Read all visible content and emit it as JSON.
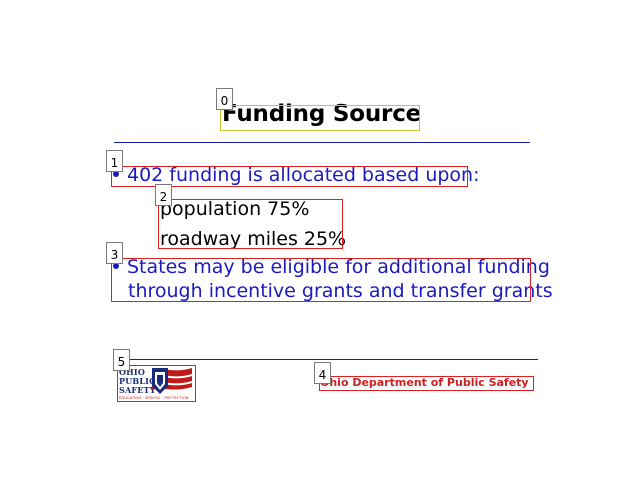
{
  "slide": {
    "title": "Funding Source",
    "bullets": [
      {
        "text": "402 funding is allocated based upon:",
        "sub_items": [
          "population  75%",
          "roadway miles 25%"
        ]
      },
      {
        "lines": [
          "States may be eligible for additional funding",
          "through incentive grants and transfer grants"
        ]
      }
    ]
  },
  "footer": {
    "department": "Ohio Department of Public Safety",
    "logo": {
      "lines": [
        "OHIO",
        "PUBLIC",
        "SAFETY"
      ],
      "motto": "EDUCATION · SERVICE · PROTECTION"
    }
  },
  "annotations": [
    "0",
    "1",
    "2",
    "3",
    "4",
    "5"
  ],
  "colors": {
    "text_blue": "#1a1ac0",
    "rule_blue": "#1a1aa8",
    "box_red": "#e02020",
    "box_title": "#c8c62a",
    "footer_red": "#cc1f1f"
  }
}
